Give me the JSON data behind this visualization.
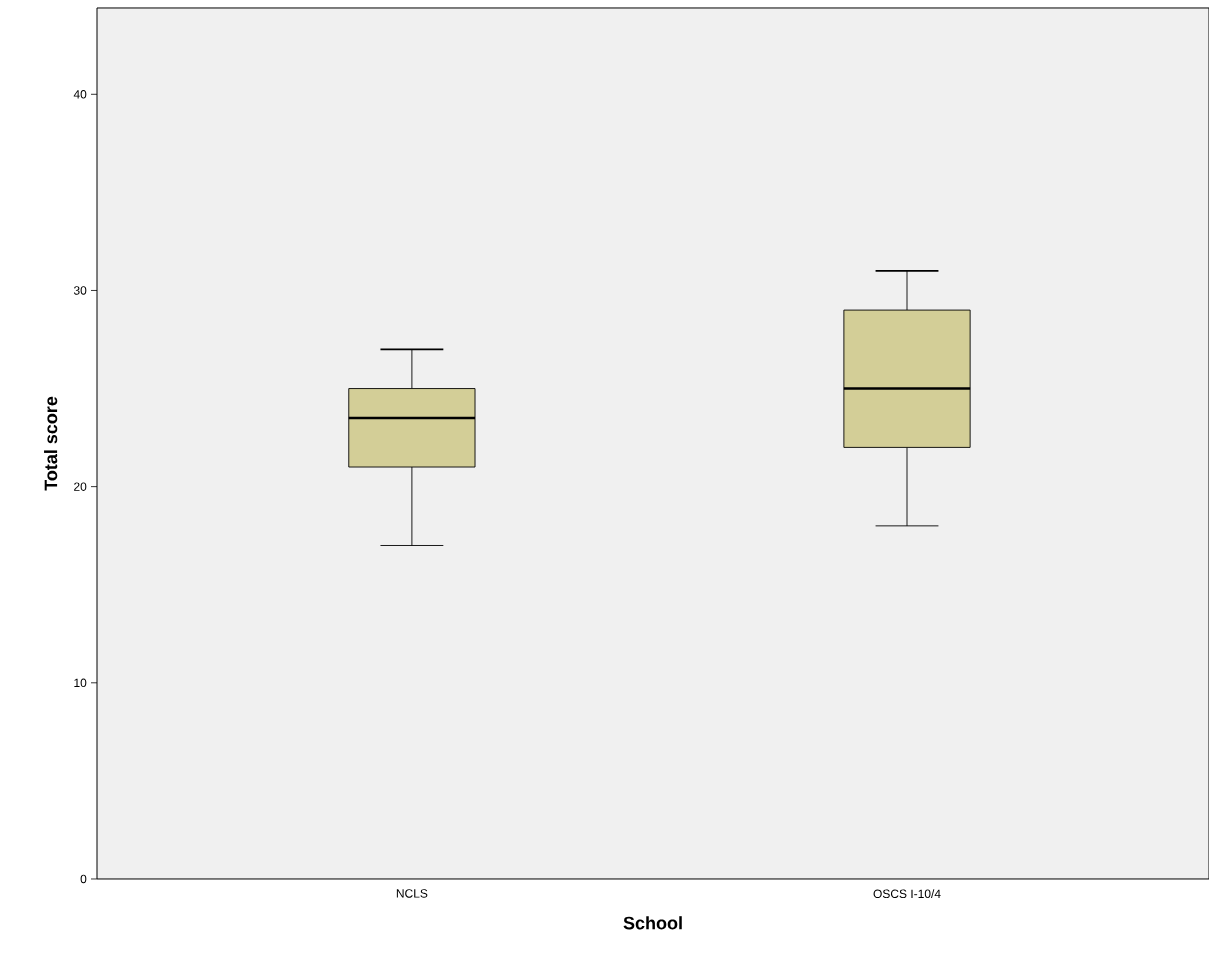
{
  "chart_data": {
    "type": "box",
    "xlabel": "School",
    "ylabel": "Total score",
    "categories": [
      "NCLS",
      "OSCS I-10/4"
    ],
    "boxes": [
      {
        "low": 17,
        "q1": 21,
        "median": 23.5,
        "q3": 25,
        "high": 27
      },
      {
        "low": 18,
        "q1": 22,
        "median": 25,
        "q3": 29,
        "high": 31
      }
    ],
    "color": "#d3ce97",
    "ylim": [
      0,
      44.4
    ],
    "yticks": [
      0,
      10,
      20,
      30,
      40
    ],
    "grid": false
  }
}
